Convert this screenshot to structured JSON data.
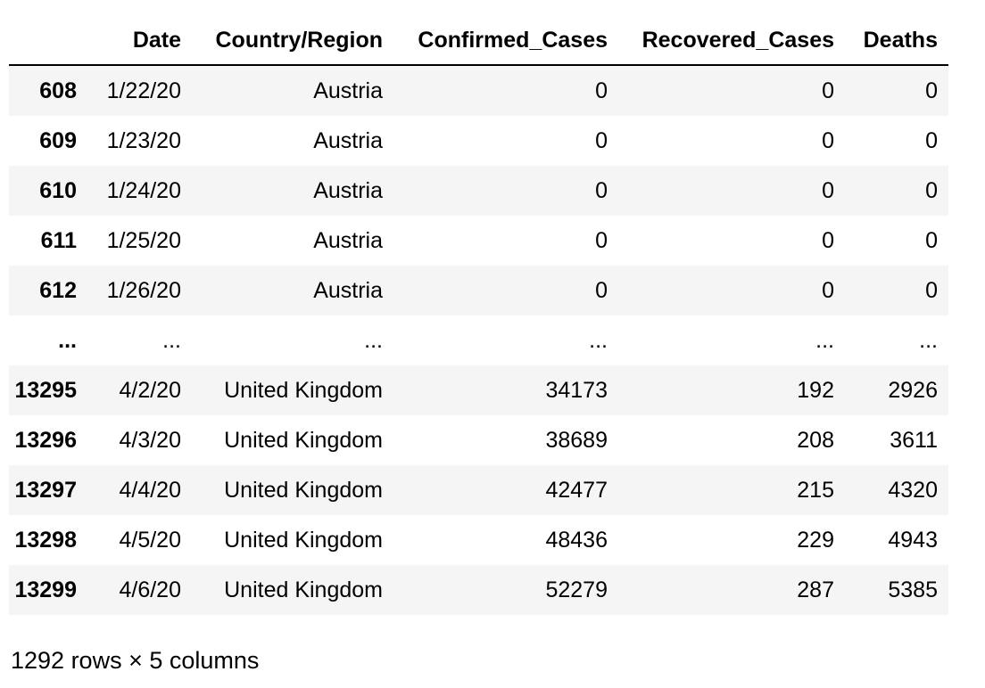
{
  "table": {
    "columns": [
      "",
      "Date",
      "Country/Region",
      "Confirmed_Cases",
      "Recovered_Cases",
      "Deaths"
    ],
    "rows": [
      [
        "608",
        "1/22/20",
        "Austria",
        "0",
        "0",
        "0"
      ],
      [
        "609",
        "1/23/20",
        "Austria",
        "0",
        "0",
        "0"
      ],
      [
        "610",
        "1/24/20",
        "Austria",
        "0",
        "0",
        "0"
      ],
      [
        "611",
        "1/25/20",
        "Austria",
        "0",
        "0",
        "0"
      ],
      [
        "612",
        "1/26/20",
        "Austria",
        "0",
        "0",
        "0"
      ],
      [
        "...",
        "...",
        "...",
        "...",
        "...",
        "..."
      ],
      [
        "13295",
        "4/2/20",
        "United Kingdom",
        "34173",
        "192",
        "2926"
      ],
      [
        "13296",
        "4/3/20",
        "United Kingdom",
        "38689",
        "208",
        "3611"
      ],
      [
        "13297",
        "4/4/20",
        "United Kingdom",
        "42477",
        "215",
        "4320"
      ],
      [
        "13298",
        "4/5/20",
        "United Kingdom",
        "48436",
        "229",
        "4943"
      ],
      [
        "13299",
        "4/6/20",
        "United Kingdom",
        "52279",
        "287",
        "5385"
      ]
    ]
  },
  "footer": {
    "shape_text": "1292 rows × 5 columns"
  }
}
